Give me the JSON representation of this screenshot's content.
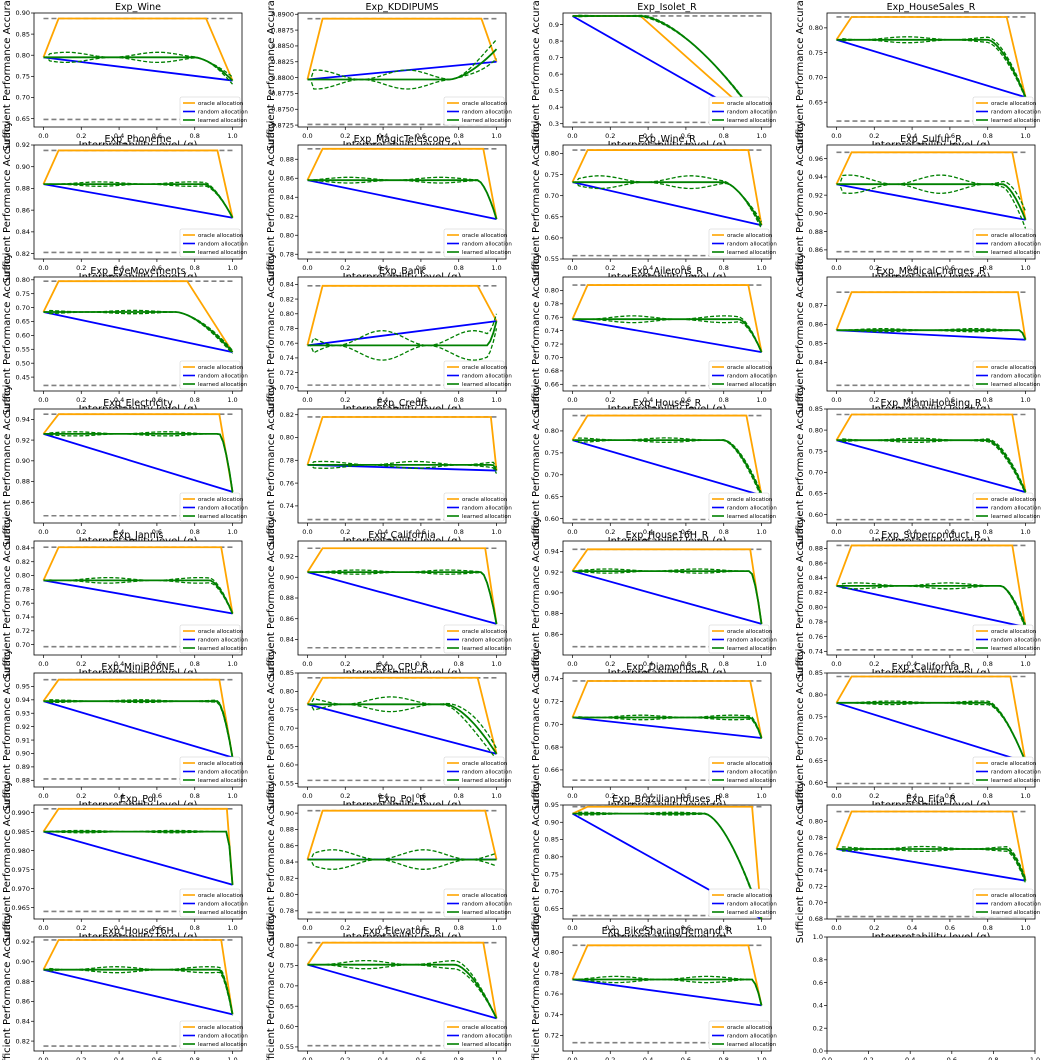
{
  "figure": {
    "rows": 8,
    "cols": 4,
    "xlabel": "Interpretability level (q)",
    "ylabel": "Sufficient Performance Accuracy",
    "legend": [
      "oracle allocation",
      "random allocation",
      "learned allocation"
    ],
    "colors": {
      "oracle": "#ffa500",
      "random": "#0000ff",
      "learned": "#008000",
      "bound": "#808080"
    },
    "empty_panel": {
      "xticks": [
        "0.0",
        "0.2",
        "0.4",
        "0.6",
        "0.8",
        "1.0"
      ],
      "yticks": [
        "0.0",
        "0.2",
        "0.4",
        "0.6",
        "0.8",
        "1.0"
      ]
    }
  },
  "chart_data": [
    {
      "type": "line",
      "title": "Exp_Wine",
      "ylim": [
        0.63,
        0.9
      ],
      "yticks": [
        "0.65",
        "0.70",
        "0.75",
        "0.80",
        "0.85",
        "0.90"
      ],
      "upper": 0.887,
      "lower": 0.648,
      "base": 0.795,
      "end": 0.74,
      "plateau_end": 0.86,
      "learned_end": 0.74,
      "learned_knee": 0.8,
      "variance": 0.012
    },
    {
      "type": "line",
      "title": "Exp_KDDIPUMS",
      "ylim": [
        0.8722,
        0.8902
      ],
      "yticks": [
        "0.8725",
        "0.8750",
        "0.8775",
        "0.8800",
        "0.8825",
        "0.8850",
        "0.8875",
        "0.8900"
      ],
      "upper": 0.8893,
      "lower": 0.8726,
      "base": 0.8797,
      "end": 0.8825,
      "plateau_end": 0.92,
      "learned_end": 0.8845,
      "learned_knee": 0.75,
      "variance": 0.0015
    },
    {
      "type": "line",
      "title": "Exp_Isolet_R",
      "ylim": [
        0.28,
        0.97
      ],
      "yticks": [
        "0.3",
        "0.4",
        "0.5",
        "0.6",
        "0.7",
        "0.8",
        "0.9"
      ],
      "upper": 0.952,
      "lower": 0.308,
      "base": 0.952,
      "end": 0.3,
      "plateau_end": 0.36,
      "learned_end": 0.3,
      "learned_knee": 0.36,
      "variance": 0.005
    },
    {
      "type": "line",
      "title": "Exp_HouseSales_R",
      "ylim": [
        0.6,
        0.83
      ],
      "yticks": [
        "0.65",
        "0.70",
        "0.75",
        "0.80"
      ],
      "upper": 0.822,
      "lower": 0.612,
      "base": 0.776,
      "end": 0.66,
      "plateau_end": 0.9,
      "learned_end": 0.66,
      "learned_knee": 0.8,
      "variance": 0.006
    },
    {
      "type": "line",
      "title": "Exp_Phoneme",
      "ylim": [
        0.815,
        0.92
      ],
      "yticks": [
        "0.82",
        "0.84",
        "0.86",
        "0.88",
        "0.90",
        "0.92"
      ],
      "upper": 0.915,
      "lower": 0.821,
      "base": 0.884,
      "end": 0.853,
      "plateau_end": 0.92,
      "learned_end": 0.853,
      "learned_knee": 0.85,
      "variance": 0.002
    },
    {
      "type": "line",
      "title": "Exp_MagicTelescope",
      "ylim": [
        0.775,
        0.895
      ],
      "yticks": [
        "0.78",
        "0.80",
        "0.82",
        "0.84",
        "0.86",
        "0.88"
      ],
      "upper": 0.891,
      "lower": 0.782,
      "base": 0.858,
      "end": 0.817,
      "plateau_end": 0.93,
      "learned_end": 0.817,
      "learned_knee": 0.9,
      "variance": 0.003
    },
    {
      "type": "line",
      "title": "Exp_Wine_R",
      "ylim": [
        0.55,
        0.82
      ],
      "yticks": [
        "0.55",
        "0.60",
        "0.65",
        "0.70",
        "0.75",
        "0.80"
      ],
      "upper": 0.808,
      "lower": 0.558,
      "base": 0.732,
      "end": 0.63,
      "plateau_end": 0.93,
      "learned_end": 0.63,
      "learned_knee": 0.8,
      "variance": 0.015
    },
    {
      "type": "line",
      "title": "Exp_Sulfur_R",
      "ylim": [
        0.85,
        0.975
      ],
      "yticks": [
        "0.86",
        "0.88",
        "0.90",
        "0.92",
        "0.94",
        "0.96"
      ],
      "upper": 0.967,
      "lower": 0.858,
      "base": 0.932,
      "end": 0.893,
      "plateau_end": 0.93,
      "learned_end": 0.893,
      "learned_knee": 0.88,
      "variance": 0.01
    },
    {
      "type": "line",
      "title": "Exp_EyeMovements",
      "ylim": [
        0.4,
        0.81
      ],
      "yticks": [
        "0.45",
        "0.50",
        "0.55",
        "0.60",
        "0.65",
        "0.70",
        "0.75",
        "0.80"
      ],
      "upper": 0.795,
      "lower": 0.42,
      "base": 0.684,
      "end": 0.54,
      "plateau_end": 0.76,
      "learned_end": 0.54,
      "learned_knee": 0.7,
      "variance": 0.006
    },
    {
      "type": "line",
      "title": "Exp_Bank",
      "ylim": [
        0.695,
        0.85
      ],
      "yticks": [
        "0.70",
        "0.72",
        "0.74",
        "0.76",
        "0.78",
        "0.80",
        "0.82",
        "0.84"
      ],
      "upper": 0.838,
      "lower": 0.703,
      "base": 0.757,
      "end": 0.79,
      "plateau_end": 0.9,
      "learned_end": 0.79,
      "learned_knee": 0.95,
      "variance": 0.02
    },
    {
      "type": "line",
      "title": "Exp_Ailerons_R",
      "ylim": [
        0.65,
        0.82
      ],
      "yticks": [
        "0.66",
        "0.68",
        "0.70",
        "0.72",
        "0.74",
        "0.76",
        "0.78",
        "0.80"
      ],
      "upper": 0.808,
      "lower": 0.658,
      "base": 0.757,
      "end": 0.708,
      "plateau_end": 0.93,
      "learned_end": 0.708,
      "learned_knee": 0.88,
      "variance": 0.005
    },
    {
      "type": "line",
      "title": "Exp_MedicalCharges_R",
      "ylim": [
        0.825,
        0.885
      ],
      "yticks": [
        "0.84",
        "0.85",
        "0.86",
        "0.87"
      ],
      "upper": 0.877,
      "lower": 0.828,
      "base": 0.857,
      "end": 0.852,
      "plateau_end": 0.96,
      "learned_end": 0.852,
      "learned_knee": 0.97,
      "variance": 0.0008
    },
    {
      "type": "line",
      "title": "Exp_Electricity",
      "ylim": [
        0.84,
        0.95
      ],
      "yticks": [
        "0.86",
        "0.88",
        "0.90",
        "0.92",
        "0.94"
      ],
      "upper": 0.945,
      "lower": 0.847,
      "base": 0.926,
      "end": 0.87,
      "plateau_end": 0.93,
      "learned_end": 0.87,
      "learned_knee": 0.93,
      "variance": 0.002
    },
    {
      "type": "line",
      "title": "Exp_Credit",
      "ylim": [
        0.725,
        0.825
      ],
      "yticks": [
        "0.74",
        "0.76",
        "0.78",
        "0.80",
        "0.82"
      ],
      "upper": 0.818,
      "lower": 0.728,
      "base": 0.776,
      "end": 0.771,
      "plateau_end": 0.97,
      "learned_end": 0.771,
      "learned_knee": 0.98,
      "variance": 0.003
    },
    {
      "type": "line",
      "title": "Exp_Houses_R",
      "ylim": [
        0.59,
        0.85
      ],
      "yticks": [
        "0.60",
        "0.65",
        "0.70",
        "0.75",
        "0.80"
      ],
      "upper": 0.835,
      "lower": 0.598,
      "base": 0.779,
      "end": 0.653,
      "plateau_end": 0.92,
      "learned_end": 0.653,
      "learned_knee": 0.8,
      "variance": 0.005
    },
    {
      "type": "line",
      "title": "Exp_MiamiHousing_R",
      "ylim": [
        0.58,
        0.85
      ],
      "yticks": [
        "0.60",
        "0.65",
        "0.70",
        "0.75",
        "0.80",
        "0.85"
      ],
      "upper": 0.837,
      "lower": 0.588,
      "base": 0.776,
      "end": 0.653,
      "plateau_end": 0.93,
      "learned_end": 0.653,
      "learned_knee": 0.8,
      "variance": 0.005
    },
    {
      "type": "line",
      "title": "Exp_Jannis",
      "ylim": [
        0.685,
        0.85
      ],
      "yticks": [
        "0.70",
        "0.72",
        "0.74",
        "0.76",
        "0.78",
        "0.80",
        "0.82",
        "0.84"
      ],
      "upper": 0.841,
      "lower": 0.697,
      "base": 0.793,
      "end": 0.745,
      "plateau_end": 0.94,
      "learned_end": 0.745,
      "learned_knee": 0.88,
      "variance": 0.004
    },
    {
      "type": "line",
      "title": "Exp_California",
      "ylim": [
        0.825,
        0.935
      ],
      "yticks": [
        "0.84",
        "0.86",
        "0.88",
        "0.90",
        "0.92"
      ],
      "upper": 0.928,
      "lower": 0.832,
      "base": 0.905,
      "end": 0.855,
      "plateau_end": 0.94,
      "learned_end": 0.855,
      "learned_knee": 0.92,
      "variance": 0.002
    },
    {
      "type": "line",
      "title": "Exp_House16H_R",
      "ylim": [
        0.84,
        0.95
      ],
      "yticks": [
        "0.86",
        "0.88",
        "0.90",
        "0.92",
        "0.94"
      ],
      "upper": 0.942,
      "lower": 0.848,
      "base": 0.921,
      "end": 0.87,
      "plateau_end": 0.94,
      "learned_end": 0.87,
      "learned_knee": 0.94,
      "variance": 0.002
    },
    {
      "type": "line",
      "title": "Exp_Superconduct_R",
      "ylim": [
        0.735,
        0.89
      ],
      "yticks": [
        "0.74",
        "0.76",
        "0.78",
        "0.80",
        "0.82",
        "0.84",
        "0.86",
        "0.88"
      ],
      "upper": 0.884,
      "lower": 0.742,
      "base": 0.829,
      "end": 0.773,
      "plateau_end": 0.93,
      "learned_end": 0.773,
      "learned_knee": 0.87,
      "variance": 0.004
    },
    {
      "type": "line",
      "title": "Exp_MiniBooNE",
      "ylim": [
        0.875,
        0.96
      ],
      "yticks": [
        "0.88",
        "0.89",
        "0.90",
        "0.91",
        "0.92",
        "0.93",
        "0.94",
        "0.95"
      ],
      "upper": 0.955,
      "lower": 0.881,
      "base": 0.939,
      "end": 0.897,
      "plateau_end": 0.93,
      "learned_end": 0.897,
      "learned_knee": 0.92,
      "variance": 0.001
    },
    {
      "type": "line",
      "title": "Exp_CPU_R",
      "ylim": [
        0.54,
        0.85
      ],
      "yticks": [
        "0.55",
        "0.60",
        "0.65",
        "0.70",
        "0.75",
        "0.80",
        "0.85"
      ],
      "upper": 0.837,
      "lower": 0.558,
      "base": 0.765,
      "end": 0.63,
      "plateau_end": 0.9,
      "learned_end": 0.63,
      "learned_knee": 0.73,
      "variance": 0.02
    },
    {
      "type": "line",
      "title": "Exp_Diamonds_R",
      "ylim": [
        0.645,
        0.745
      ],
      "yticks": [
        "0.66",
        "0.68",
        "0.70",
        "0.72",
        "0.74"
      ],
      "upper": 0.738,
      "lower": 0.651,
      "base": 0.706,
      "end": 0.688,
      "plateau_end": 0.94,
      "learned_end": 0.688,
      "learned_knee": 0.94,
      "variance": 0.002
    },
    {
      "type": "line",
      "title": "Exp_California_R",
      "ylim": [
        0.59,
        0.85
      ],
      "yticks": [
        "0.60",
        "0.65",
        "0.70",
        "0.75",
        "0.80",
        "0.85"
      ],
      "upper": 0.842,
      "lower": 0.598,
      "base": 0.782,
      "end": 0.647,
      "plateau_end": 0.92,
      "learned_end": 0.647,
      "learned_knee": 0.8,
      "variance": 0.004
    },
    {
      "type": "line",
      "title": "Exp_Pol",
      "ylim": [
        0.962,
        0.992
      ],
      "yticks": [
        "0.965",
        "0.970",
        "0.975",
        "0.980",
        "0.985",
        "0.990"
      ],
      "upper": 0.991,
      "lower": 0.964,
      "base": 0.985,
      "end": 0.971,
      "plateau_end": 0.97,
      "learned_end": 0.971,
      "learned_knee": 0.97,
      "variance": 0.0003
    },
    {
      "type": "line",
      "title": "Exp_Pol_R",
      "ylim": [
        0.77,
        0.91
      ],
      "yticks": [
        "0.78",
        "0.80",
        "0.82",
        "0.84",
        "0.86",
        "0.88",
        "0.90"
      ],
      "upper": 0.903,
      "lower": 0.778,
      "base": 0.843,
      "end": 0.843,
      "plateau_end": 0.94,
      "learned_end": 0.843,
      "learned_knee": 0.98,
      "variance": 0.012
    },
    {
      "type": "line",
      "title": "Exp_BrazilianHouses_R",
      "ylim": [
        0.62,
        0.95
      ],
      "yticks": [
        "0.65",
        "0.70",
        "0.75",
        "0.80",
        "0.85",
        "0.90",
        "0.95"
      ],
      "upper": 0.945,
      "lower": 0.63,
      "base": 0.925,
      "end": 0.62,
      "plateau_end": 0.95,
      "learned_end": 0.62,
      "learned_knee": 0.7,
      "variance": 0.004
    },
    {
      "type": "line",
      "title": "Exp_Fifa_R",
      "ylim": [
        0.68,
        0.82
      ],
      "yticks": [
        "0.68",
        "0.70",
        "0.72",
        "0.74",
        "0.76",
        "0.78",
        "0.80"
      ],
      "upper": 0.812,
      "lower": 0.683,
      "base": 0.766,
      "end": 0.727,
      "plateau_end": 0.93,
      "learned_end": 0.727,
      "learned_knee": 0.9,
      "variance": 0.003
    },
    {
      "type": "line",
      "title": "Exp_House16H",
      "ylim": [
        0.81,
        0.925
      ],
      "yticks": [
        "0.82",
        "0.84",
        "0.86",
        "0.88",
        "0.90",
        "0.92"
      ],
      "upper": 0.922,
      "lower": 0.815,
      "base": 0.892,
      "end": 0.847,
      "plateau_end": 0.94,
      "learned_end": 0.847,
      "learned_knee": 0.93,
      "variance": 0.003
    },
    {
      "type": "line",
      "title": "Exp_Elevators_R",
      "ylim": [
        0.54,
        0.82
      ],
      "yticks": [
        "0.55",
        "0.60",
        "0.65",
        "0.70",
        "0.75",
        "0.80"
      ],
      "upper": 0.806,
      "lower": 0.553,
      "base": 0.752,
      "end": 0.62,
      "plateau_end": 0.93,
      "learned_end": 0.62,
      "learned_knee": 0.78,
      "variance": 0.01
    },
    {
      "type": "line",
      "title": "Exp_BikeSharingDemand_R",
      "ylim": [
        0.705,
        0.815
      ],
      "yticks": [
        "0.72",
        "0.74",
        "0.76",
        "0.78",
        "0.80"
      ],
      "upper": 0.807,
      "lower": 0.713,
      "base": 0.774,
      "end": 0.749,
      "plateau_end": 0.93,
      "learned_end": 0.749,
      "learned_knee": 0.95,
      "variance": 0.003
    }
  ]
}
